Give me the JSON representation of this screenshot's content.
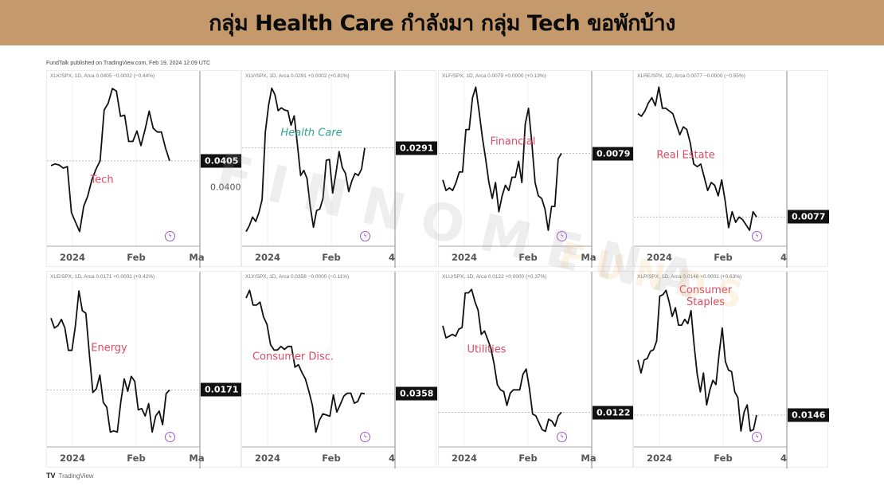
{
  "banner": {
    "title": "กลุ่ม Health Care กำลังมา กลุ่ม Tech ขอพักบ้าง",
    "background": "#c49a6c"
  },
  "published": "FundTalk published on TradingView.com, Feb 19, 2024 12:09 UTC",
  "watermark": {
    "text": "FINNOMENA",
    "sub": "FUNDS"
  },
  "footer": {
    "logo": "TV",
    "brand": "TradingView"
  },
  "colors": {
    "line": "#111111",
    "label_red": "#e04a62",
    "label_teal": "#2fa58a",
    "price_box": "#111111"
  },
  "chart_data": [
    {
      "type": "line",
      "header": "XLK/SPX, 1D, Arca  0.0405  −0.0002 (−0.44%)",
      "label": "Tech",
      "label_color": "#e04a62",
      "last": "0.0405",
      "extra_price_label": "0.0400",
      "x_ticks": [
        "2024",
        "Feb",
        "Ma"
      ],
      "ylim": [
        0.03887,
        0.04211
      ],
      "values": [
        0.04041,
        0.04044,
        0.04042,
        0.04036,
        0.04039,
        0.03951,
        0.03933,
        0.03915,
        0.03963,
        0.03983,
        0.04014,
        0.04034,
        0.0405,
        0.04147,
        0.0416,
        0.04188,
        0.04183,
        0.04135,
        0.04137,
        0.04087,
        0.04087,
        0.04107,
        0.04079,
        0.0411,
        0.04145,
        0.04112,
        0.04105,
        0.04105,
        0.04074,
        0.0405
      ]
    },
    {
      "type": "line",
      "header": "XLV/SPX, 1D, Arca  0.0291  +0.0002 (+0.81%)",
      "label": "Health Care",
      "label_color": "#2fa58a",
      "last": "0.0291",
      "x_ticks": [
        "2024",
        "Feb",
        "4"
      ],
      "ylim": [
        0.02775,
        0.03008
      ],
      "values": [
        0.02795,
        0.02803,
        0.02815,
        0.02809,
        0.02821,
        0.02839,
        0.02932,
        0.02968,
        0.02992,
        0.02983,
        0.02961,
        0.02965,
        0.02962,
        0.02961,
        0.02941,
        0.02954,
        0.02915,
        0.02872,
        0.02879,
        0.02868,
        0.0283,
        0.02801,
        0.02824,
        0.02826,
        0.02841,
        0.02893,
        0.02894,
        0.02848,
        0.02875,
        0.02905,
        0.02883,
        0.02875,
        0.0285,
        0.02865,
        0.02875,
        0.02872,
        0.02881,
        0.0291
      ]
    },
    {
      "type": "line",
      "header": "XLF/SPX, 1D, Arca  0.0079  +0.0000 (+0.13%)",
      "label": "Financial",
      "label_color": "#e04a62",
      "last": "0.0079",
      "x_ticks": [
        "2024",
        "Feb",
        "Ma"
      ],
      "ylim": [
        0.00755,
        0.00819
      ],
      "values": [
        0.0078,
        0.00776,
        0.00777,
        0.00776,
        0.00779,
        0.00783,
        0.00783,
        0.00799,
        0.00799,
        0.00811,
        0.00815,
        0.00806,
        0.00796,
        0.00788,
        0.00779,
        0.00773,
        0.00779,
        0.00768,
        0.00774,
        0.00778,
        0.00776,
        0.00781,
        0.00781,
        0.00787,
        0.00779,
        0.00801,
        0.00807,
        0.00794,
        0.00779,
        0.00774,
        0.00773,
        0.00769,
        0.00761,
        0.0077,
        0.0077,
        0.00788,
        0.0079
      ]
    },
    {
      "type": "line",
      "header": "XLRE/SPX, 1D, Arca  0.0077  −0.0000 (−0.55%)",
      "label": "Real Estate",
      "label_color": "#e04a62",
      "last": "0.0077",
      "x_ticks": [
        "2024",
        "Feb",
        "4"
      ],
      "ylim": [
        0.00759,
        0.00823
      ],
      "values": [
        0.00809,
        0.00808,
        0.0081,
        0.00813,
        0.00815,
        0.00812,
        0.00819,
        0.00811,
        0.00811,
        0.0081,
        0.00809,
        0.00805,
        0.00801,
        0.00804,
        0.00803,
        0.00798,
        0.0079,
        0.00789,
        0.0079,
        0.00785,
        0.0078,
        0.00783,
        0.00782,
        0.00778,
        0.00784,
        0.00776,
        0.00766,
        0.00772,
        0.00768,
        0.0077,
        0.00769,
        0.00767,
        0.00765,
        0.00772,
        0.0077
      ]
    },
    {
      "type": "line",
      "header": "XLE/SPX, 1D, Arca  0.0171  +0.0001 (+0.42%)",
      "label": "Energy",
      "label_color": "#e04a62",
      "last": "0.0171",
      "x_ticks": [
        "2024",
        "Feb",
        "Ma"
      ],
      "ylim": [
        0.01664,
        0.01801
      ],
      "values": [
        0.01768,
        0.0176,
        0.01762,
        0.01767,
        0.0176,
        0.01742,
        0.01742,
        0.01762,
        0.0179,
        0.01774,
        0.01772,
        0.01739,
        0.01708,
        0.01711,
        0.01722,
        0.017,
        0.01696,
        0.01676,
        0.01677,
        0.01676,
        0.017,
        0.01719,
        0.01709,
        0.01721,
        0.01717,
        0.01694,
        0.01695,
        0.01689,
        0.01699,
        0.01676,
        0.01689,
        0.01693,
        0.01682,
        0.01707,
        0.0171
      ]
    },
    {
      "type": "line",
      "header": "XLY/SPX, 1D, Arca  0.0358  −0.0000 (−0.11%)",
      "label": "Consumer Disc.",
      "label_color": "#e04a62",
      "last": "0.0358",
      "x_ticks": [
        "2024",
        "Feb",
        "4"
      ],
      "ylim": [
        0.0349,
        0.03777
      ],
      "values": [
        0.03742,
        0.03755,
        0.0373,
        0.0373,
        0.03735,
        0.0371,
        0.03697,
        0.03663,
        0.03654,
        0.03654,
        0.0366,
        0.03655,
        0.0366,
        0.0366,
        0.03625,
        0.03629,
        0.03616,
        0.03605,
        0.03584,
        0.0356,
        0.03515,
        0.03535,
        0.03546,
        0.03544,
        0.03542,
        0.03578,
        0.03549,
        0.03562,
        0.03576,
        0.03581,
        0.03581,
        0.03564,
        0.03567,
        0.03581,
        0.0358
      ]
    },
    {
      "type": "line",
      "header": "XLU/SPX, 1D, Arca  0.0122  +0.0000 (+0.37%)",
      "label": "Utilities",
      "label_color": "#e04a62",
      "last": "0.0122",
      "x_ticks": [
        "2024",
        "Feb",
        "Ma"
      ],
      "ylim": [
        0.012,
        0.01298
      ],
      "values": [
        0.0127,
        0.01263,
        0.01264,
        0.01265,
        0.01264,
        0.01268,
        0.01269,
        0.01289,
        0.01289,
        0.01291,
        0.01284,
        0.01279,
        0.01265,
        0.01267,
        0.01262,
        0.01257,
        0.01248,
        0.01236,
        0.01233,
        0.01232,
        0.01224,
        0.01231,
        0.01233,
        0.01233,
        0.01233,
        0.01242,
        0.01245,
        0.01234,
        0.01219,
        0.01218,
        0.01214,
        0.0121,
        0.01209,
        0.01216,
        0.01215,
        0.01212,
        0.01218,
        0.0122
      ]
    },
    {
      "type": "line",
      "header": "XLP/SPX, 1D, Arca  0.0146  +0.0001 (+0.63%)",
      "label": "Consumer\nStaples",
      "label_color": "#e04a62",
      "last": "0.0146",
      "x_ticks": [
        "2024",
        "Feb",
        "4"
      ],
      "ylim": [
        0.01438,
        0.01555
      ],
      "values": [
        0.01498,
        0.01489,
        0.01498,
        0.01499,
        0.01504,
        0.01505,
        0.01511,
        0.01542,
        0.01543,
        0.01546,
        0.01538,
        0.01528,
        0.01534,
        0.01522,
        0.01522,
        0.01526,
        0.01523,
        0.01532,
        0.01508,
        0.01488,
        0.01476,
        0.01489,
        0.01467,
        0.01477,
        0.01484,
        0.01481,
        0.01502,
        0.0152,
        0.01497,
        0.01491,
        0.0149,
        0.01476,
        0.01472,
        0.01449,
        0.01462,
        0.01467,
        0.01449,
        0.0145,
        0.0146
      ]
    }
  ]
}
